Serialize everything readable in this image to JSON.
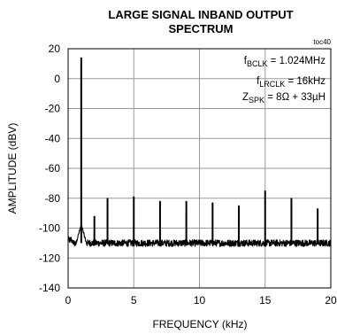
{
  "chart_data": {
    "type": "line",
    "title_lines": [
      "LARGE SIGNAL INBAND OUTPUT",
      "SPECTRUM"
    ],
    "code": "toc40",
    "xlabel": "FREQUENCY (kHz)",
    "ylabel": "AMPLITUDE (dBV)",
    "xlim": [
      0,
      20
    ],
    "ylim": [
      -140,
      20
    ],
    "xticks": [
      0,
      5,
      10,
      15,
      20
    ],
    "yticks": [
      20,
      0,
      -20,
      -40,
      -60,
      -80,
      -100,
      -120,
      -140
    ],
    "grid": true,
    "annotations": [
      {
        "main": "f",
        "sub": "BCLK",
        "rest": " = 1.024MHz"
      },
      {
        "main": "f",
        "sub": "LRCLK",
        "rest": " = 16kHz"
      },
      {
        "main": "Z",
        "sub": "SPK",
        "rest": " = 8Ω + 33µH"
      }
    ],
    "noise_floor": -110,
    "series": [
      {
        "values_note": "",
        "peaks": [
          {
            "x": 1,
            "y": 14
          },
          {
            "x": 2,
            "y": -92
          },
          {
            "x": 3,
            "y": -80
          },
          {
            "x": 5,
            "y": -79
          },
          {
            "x": 7,
            "y": -82
          },
          {
            "x": 9,
            "y": -82
          },
          {
            "x": 11,
            "y": -83
          },
          {
            "x": 13,
            "y": -85
          },
          {
            "x": 15,
            "y": -75
          },
          {
            "x": 17,
            "y": -80
          },
          {
            "x": 19,
            "y": -87
          }
        ]
      }
    ]
  }
}
